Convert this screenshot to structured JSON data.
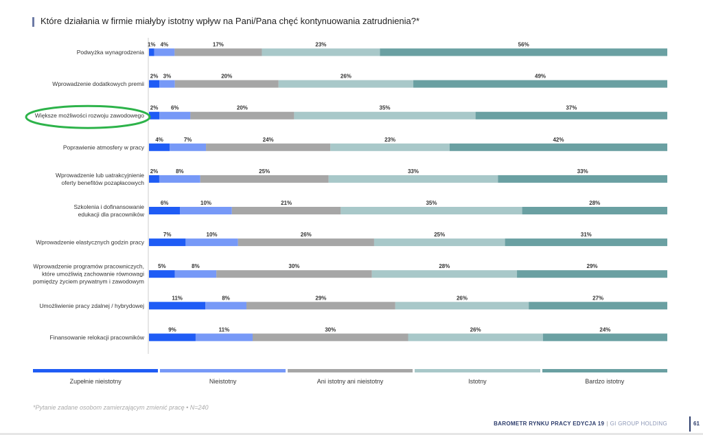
{
  "title": "Które działania w firmie miałyby istotny wpływ na Pani/Pana chęć kontynuowania zatrudnienia?*",
  "chart_data": {
    "type": "bar",
    "orientation": "horizontal-stacked",
    "title": "Które działania w firmie miałyby istotny wpływ na Pani/Pana chęć kontynuowania zatrudnienia?*",
    "categories": [
      [
        "Podwyżka wynagrodzenia"
      ],
      [
        "Wprowadzenie dodatkowych premii"
      ],
      [
        "Większe możliwości rozwoju zawodowego"
      ],
      [
        "Poprawienie atmosfery w pracy"
      ],
      [
        "Wprowadzenie lub uatrakcyjnienie",
        "oferty benefitów pozapłacowych"
      ],
      [
        "Szkolenia i dofinansowanie",
        "edukacji dla pracowników"
      ],
      [
        "Wprowadzenie elastycznych godzin pracy"
      ],
      [
        "Wprowadzenie programów pracowniczych,",
        "które umożliwią zachowanie równowagi",
        "pomiędzy życiem prywatnym i zawodowym"
      ],
      [
        "Umożliwienie pracy zdalnej / hybrydowej"
      ],
      [
        "Finansowanie relokacji pracowników"
      ]
    ],
    "highlighted_category_index": 2,
    "highlight_color": "#2db34a",
    "series": [
      {
        "name": "Zupełnie nieistotny",
        "color": "#1f5cf5",
        "values": [
          1,
          2,
          2,
          4,
          2,
          6,
          7,
          5,
          11,
          9
        ]
      },
      {
        "name": "Nieistotny",
        "color": "#7799f7",
        "values": [
          4,
          3,
          6,
          7,
          8,
          10,
          10,
          8,
          8,
          11
        ]
      },
      {
        "name": "Ani istotny ani nieistotny",
        "color": "#a6a6a6",
        "values": [
          17,
          20,
          20,
          24,
          25,
          21,
          26,
          30,
          29,
          30
        ]
      },
      {
        "name": "Istotny",
        "color": "#a8c8c9",
        "values": [
          23,
          26,
          35,
          23,
          33,
          35,
          25,
          28,
          26,
          26
        ]
      },
      {
        "name": "Bardzo istotny",
        "color": "#6aa0a2",
        "values": [
          56,
          49,
          37,
          42,
          33,
          28,
          31,
          29,
          27,
          24
        ]
      }
    ],
    "value_suffix": "%",
    "legend_position": "bottom"
  },
  "footnote": "*Pytanie zadane osobom zamierzającym zmienić pracę • N=240",
  "footer": {
    "publication": "BAROMETR RYNKU PRACY EDYCJA 19",
    "separator": "|",
    "company": "GI GROUP HOLDING",
    "page": "61"
  }
}
